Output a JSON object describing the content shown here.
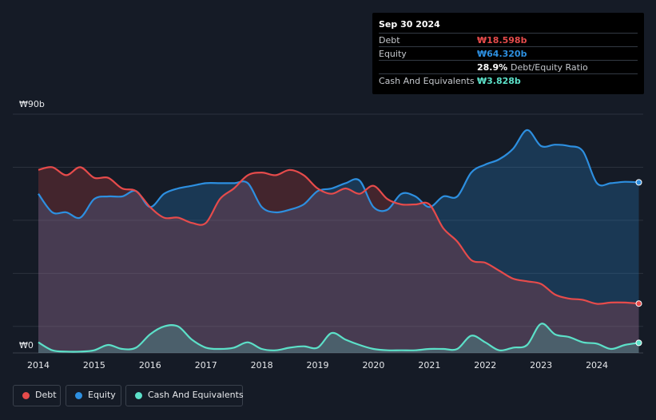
{
  "tooltip": {
    "date": "Sep 30 2024",
    "debt_label": "Debt",
    "debt_value": "₩18.598b",
    "equity_label": "Equity",
    "equity_value": "₩64.320b",
    "ratio_value": "28.9%",
    "ratio_label": "Debt/Equity Ratio",
    "cash_label": "Cash And Equivalents",
    "cash_value": "₩3.828b"
  },
  "legend": {
    "debt": "Debt",
    "equity": "Equity",
    "cash": "Cash And Equivalents"
  },
  "colors": {
    "background": "#151b26",
    "debt": "#e64b4b",
    "equity": "#2d8fe0",
    "cash": "#5ce0c8",
    "grid": "#2b323d"
  },
  "chart_data": {
    "type": "area",
    "title": "",
    "xlabel": "",
    "ylabel": "",
    "y_unit": "₩ billions",
    "ylim": [
      0,
      90
    ],
    "y_tick_labels": [
      {
        "value": 90,
        "label": "₩90b"
      },
      {
        "value": 0,
        "label": "₩0"
      }
    ],
    "x_ticks": [
      2014,
      2015,
      2016,
      2017,
      2018,
      2019,
      2020,
      2021,
      2022,
      2023,
      2024
    ],
    "xlim": [
      2014.0,
      2024.8
    ],
    "series": [
      {
        "name": "Debt",
        "x": [
          2014.0,
          2014.25,
          2014.5,
          2014.75,
          2015.0,
          2015.25,
          2015.5,
          2015.75,
          2016.0,
          2016.25,
          2016.5,
          2016.75,
          2017.0,
          2017.25,
          2017.5,
          2017.75,
          2018.0,
          2018.25,
          2018.5,
          2018.75,
          2019.0,
          2019.25,
          2019.5,
          2019.75,
          2020.0,
          2020.25,
          2020.5,
          2020.75,
          2021.0,
          2021.25,
          2021.5,
          2021.75,
          2022.0,
          2022.25,
          2022.5,
          2022.75,
          2023.0,
          2023.25,
          2023.5,
          2023.75,
          2024.0,
          2024.25,
          2024.5,
          2024.75
        ],
        "values": [
          69,
          70,
          67,
          70,
          66,
          66,
          62,
          61,
          55,
          51,
          51,
          49,
          49,
          58,
          62,
          67,
          68,
          67,
          69,
          67,
          62,
          60,
          62,
          60,
          63,
          58,
          56,
          56,
          56,
          47,
          42,
          35,
          34,
          31,
          28,
          27,
          26,
          22,
          20.5,
          20,
          18.5,
          19,
          19,
          18.6
        ]
      },
      {
        "name": "Equity",
        "x": [
          2014.0,
          2014.25,
          2014.5,
          2014.75,
          2015.0,
          2015.25,
          2015.5,
          2015.75,
          2016.0,
          2016.25,
          2016.5,
          2016.75,
          2017.0,
          2017.25,
          2017.5,
          2017.75,
          2018.0,
          2018.25,
          2018.5,
          2018.75,
          2019.0,
          2019.25,
          2019.5,
          2019.75,
          2020.0,
          2020.25,
          2020.5,
          2020.75,
          2021.0,
          2021.25,
          2021.5,
          2021.75,
          2022.0,
          2022.25,
          2022.5,
          2022.75,
          2023.0,
          2023.25,
          2023.5,
          2023.75,
          2024.0,
          2024.25,
          2024.5,
          2024.75
        ],
        "values": [
          60,
          53,
          53,
          51,
          58,
          59,
          59,
          61,
          55,
          60,
          62,
          63,
          64,
          64,
          64,
          64,
          55,
          53,
          54,
          56,
          61,
          62,
          64,
          65,
          55,
          54,
          60,
          59,
          55,
          59,
          59,
          68,
          71,
          73,
          77,
          84,
          78,
          78.5,
          78,
          76,
          64,
          64,
          64.5,
          64.3
        ]
      },
      {
        "name": "Cash And Equivalents",
        "x": [
          2014.0,
          2014.25,
          2014.5,
          2014.75,
          2015.0,
          2015.25,
          2015.5,
          2015.75,
          2016.0,
          2016.25,
          2016.5,
          2016.75,
          2017.0,
          2017.25,
          2017.5,
          2017.75,
          2018.0,
          2018.25,
          2018.5,
          2018.75,
          2019.0,
          2019.25,
          2019.5,
          2019.75,
          2020.0,
          2020.25,
          2020.5,
          2020.75,
          2021.0,
          2021.25,
          2021.5,
          2021.75,
          2022.0,
          2022.25,
          2022.5,
          2022.75,
          2023.0,
          2023.25,
          2023.5,
          2023.75,
          2024.0,
          2024.25,
          2024.5,
          2024.75
        ],
        "values": [
          4,
          1,
          0.5,
          0.5,
          1,
          3,
          1.5,
          2,
          7,
          10,
          10,
          5,
          2,
          1.5,
          2,
          4,
          1.5,
          1,
          2,
          2.5,
          2,
          7.5,
          5,
          3,
          1.5,
          1,
          1,
          1,
          1.5,
          1.5,
          1.5,
          6.5,
          4,
          1,
          2,
          3,
          11,
          7,
          6,
          4,
          3.5,
          1.5,
          3,
          3.8
        ]
      }
    ]
  }
}
